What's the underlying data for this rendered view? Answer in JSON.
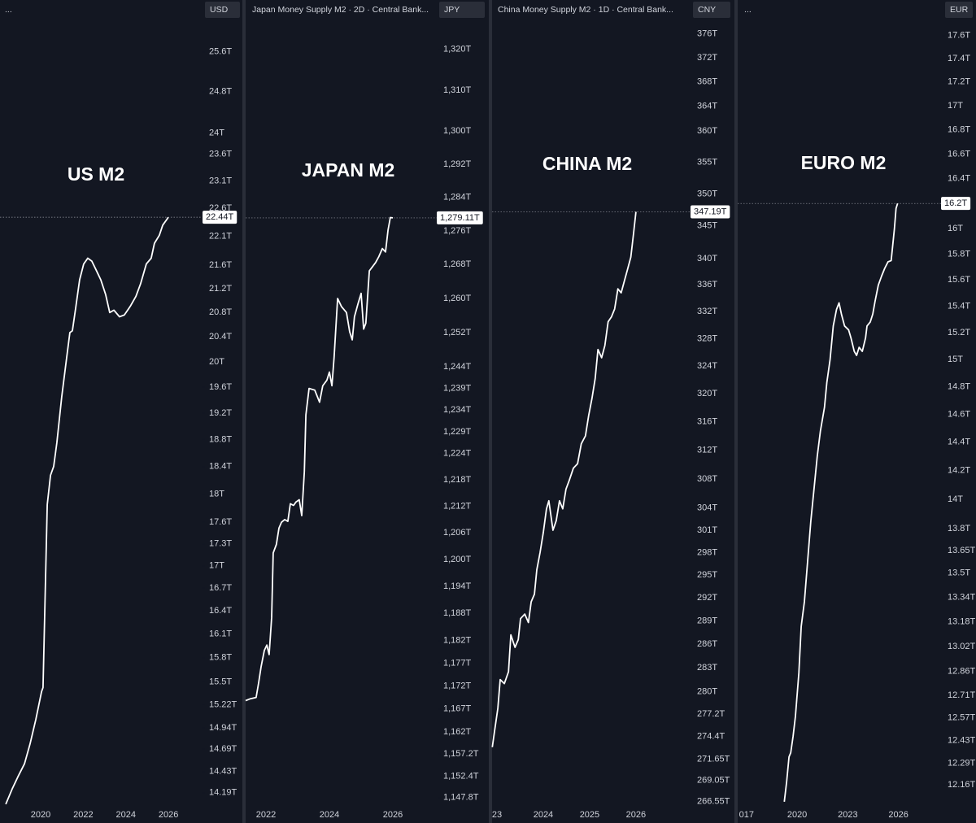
{
  "chart_data": [
    {
      "type": "line",
      "title": "US M2",
      "header": "...",
      "currency": "USD",
      "color": "#ffffff",
      "log_scale": true,
      "xlim": [
        2018.09,
        2027.56
      ],
      "xticks": [
        2020,
        2022,
        2024,
        2026
      ],
      "ylim": [
        14.05,
        26.2
      ],
      "yticks": [
        {
          "value": 14.19,
          "label": "14.19T"
        },
        {
          "value": 14.43,
          "label": "14.43T"
        },
        {
          "value": 14.69,
          "label": "14.69T"
        },
        {
          "value": 14.94,
          "label": "14.94T"
        },
        {
          "value": 15.22,
          "label": "15.22T"
        },
        {
          "value": 15.5,
          "label": "15.5T"
        },
        {
          "value": 15.8,
          "label": "15.8T"
        },
        {
          "value": 16.1,
          "label": "16.1T"
        },
        {
          "value": 16.4,
          "label": "16.4T"
        },
        {
          "value": 16.7,
          "label": "16.7T"
        },
        {
          "value": 17,
          "label": "17T"
        },
        {
          "value": 17.3,
          "label": "17.3T"
        },
        {
          "value": 17.6,
          "label": "17.6T"
        },
        {
          "value": 18,
          "label": "18T"
        },
        {
          "value": 18.4,
          "label": "18.4T"
        },
        {
          "value": 18.8,
          "label": "18.8T"
        },
        {
          "value": 19.2,
          "label": "19.2T"
        },
        {
          "value": 19.6,
          "label": "19.6T"
        },
        {
          "value": 20,
          "label": "20T"
        },
        {
          "value": 20.4,
          "label": "20.4T"
        },
        {
          "value": 20.8,
          "label": "20.8T"
        },
        {
          "value": 21.2,
          "label": "21.2T"
        },
        {
          "value": 21.6,
          "label": "21.6T"
        },
        {
          "value": 22.1,
          "label": "22.1T"
        },
        {
          "value": 22.6,
          "label": "22.6T"
        },
        {
          "value": 23.1,
          "label": "23.1T"
        },
        {
          "value": 23.6,
          "label": "23.6T"
        },
        {
          "value": 24,
          "label": "24T"
        },
        {
          "value": 24.8,
          "label": "24.8T"
        },
        {
          "value": 25.6,
          "label": "25.6T"
        }
      ],
      "last_value": {
        "value": 22.44,
        "label": "22.44T"
      },
      "x": [
        2018.36,
        2018.66,
        2018.93,
        2019.24,
        2019.5,
        2019.77,
        2020.04,
        2020.11,
        2020.31,
        2020.46,
        2020.61,
        2020.76,
        2020.99,
        2021.22,
        2021.37,
        2021.49,
        2021.64,
        2021.83,
        2022.02,
        2022.21,
        2022.4,
        2022.6,
        2022.82,
        2023.05,
        2023.24,
        2023.44,
        2023.7,
        2023.93,
        2024.2,
        2024.47,
        2024.69,
        2024.96,
        2025.19,
        2025.34,
        2025.57,
        2025.73,
        2025.92,
        2025.99
      ],
      "values": [
        14.06,
        14.23,
        14.37,
        14.52,
        14.75,
        15.04,
        15.38,
        15.43,
        17.85,
        18.27,
        18.4,
        18.75,
        19.45,
        20.07,
        20.47,
        20.5,
        20.87,
        21.35,
        21.62,
        21.72,
        21.67,
        21.52,
        21.35,
        21.1,
        20.8,
        20.84,
        20.73,
        20.76,
        20.9,
        21.07,
        21.28,
        21.62,
        21.72,
        21.98,
        22.12,
        22.3,
        22.4,
        22.44
      ]
    },
    {
      "type": "line",
      "title": "JAPAN M2",
      "header": "Japan Money Supply M2 · 2D · Central Bank...",
      "currency": "JPY",
      "color": "#ffffff",
      "log_scale": true,
      "xlim": [
        2021.36,
        2027.41
      ],
      "xticks": [
        2022,
        2024,
        2026
      ],
      "ylim": [
        1146.2,
        1326.6
      ],
      "yticks": [
        {
          "value": 1147.8,
          "label": "1,147.8T"
        },
        {
          "value": 1152.4,
          "label": "1,152.4T"
        },
        {
          "value": 1157.2,
          "label": "1,157.2T"
        },
        {
          "value": 1162,
          "label": "1,162T"
        },
        {
          "value": 1167,
          "label": "1,167T"
        },
        {
          "value": 1172,
          "label": "1,172T"
        },
        {
          "value": 1177,
          "label": "1,177T"
        },
        {
          "value": 1182,
          "label": "1,182T"
        },
        {
          "value": 1188,
          "label": "1,188T"
        },
        {
          "value": 1194,
          "label": "1,194T"
        },
        {
          "value": 1200,
          "label": "1,200T"
        },
        {
          "value": 1206,
          "label": "1,206T"
        },
        {
          "value": 1212,
          "label": "1,212T"
        },
        {
          "value": 1218,
          "label": "1,218T"
        },
        {
          "value": 1224,
          "label": "1,224T"
        },
        {
          "value": 1229,
          "label": "1,229T"
        },
        {
          "value": 1234,
          "label": "1,234T"
        },
        {
          "value": 1239,
          "label": "1,239T"
        },
        {
          "value": 1244,
          "label": "1,244T"
        },
        {
          "value": 1252,
          "label": "1,252T"
        },
        {
          "value": 1260,
          "label": "1,260T"
        },
        {
          "value": 1268,
          "label": "1,268T"
        },
        {
          "value": 1276,
          "label": "1,276T"
        },
        {
          "value": 1284,
          "label": "1,284T"
        },
        {
          "value": 1292,
          "label": "1,292T"
        },
        {
          "value": 1300,
          "label": "1,300T"
        },
        {
          "value": 1310,
          "label": "1,310T"
        },
        {
          "value": 1320,
          "label": "1,320T"
        }
      ],
      "last_value": {
        "value": 1279.11,
        "label": "1,279.11T"
      },
      "x": [
        2021.36,
        2021.51,
        2021.69,
        2021.77,
        2021.85,
        2021.95,
        2022.03,
        2022.1,
        2022.18,
        2022.23,
        2022.33,
        2022.41,
        2022.49,
        2022.59,
        2022.69,
        2022.77,
        2022.87,
        2022.95,
        2023.05,
        2023.13,
        2023.21,
        2023.26,
        2023.36,
        2023.54,
        2023.69,
        2023.79,
        2023.92,
        2024,
        2024.08,
        2024.15,
        2024.26,
        2024.38,
        2024.54,
        2024.64,
        2024.72,
        2024.79,
        2024.9,
        2025,
        2025.08,
        2025.15,
        2025.26,
        2025.36,
        2025.46,
        2025.56,
        2025.67,
        2025.77,
        2025.85,
        2025.92,
        2026
      ],
      "values": [
        1168.8,
        1169.2,
        1169.5,
        1172.7,
        1176.3,
        1179.8,
        1181,
        1178.9,
        1187.1,
        1201.5,
        1203.4,
        1207.1,
        1208.4,
        1209,
        1208.6,
        1212.6,
        1212.2,
        1213,
        1213.5,
        1209.9,
        1219.9,
        1232.9,
        1239,
        1238.6,
        1235.8,
        1239.6,
        1240.9,
        1242.8,
        1239.6,
        1246.3,
        1260,
        1258.1,
        1256.7,
        1252.2,
        1250.3,
        1255.7,
        1258.7,
        1261.2,
        1252.8,
        1254.2,
        1266.5,
        1267.5,
        1268.5,
        1269.9,
        1271.8,
        1271,
        1276.2,
        1279.2,
        1279.11
      ]
    },
    {
      "type": "line",
      "title": "CHINA M2",
      "header": "China Money Supply M2 · 1D · Central Bank...",
      "currency": "CNY",
      "color": "#ffffff",
      "log_scale": true,
      "xlim": [
        2022.895,
        2027.16
      ],
      "xticks": [
        {
          "value": 2023,
          "label": "23"
        },
        2024,
        2025,
        2026
      ],
      "ylim": [
        266.1,
        377.9
      ],
      "yticks": [
        {
          "value": 266.55,
          "label": "266.55T"
        },
        {
          "value": 269.05,
          "label": "269.05T"
        },
        {
          "value": 271.65,
          "label": "271.65T"
        },
        {
          "value": 274.4,
          "label": "274.4T"
        },
        {
          "value": 277.2,
          "label": "277.2T"
        },
        {
          "value": 280,
          "label": "280T"
        },
        {
          "value": 283,
          "label": "283T"
        },
        {
          "value": 286,
          "label": "286T"
        },
        {
          "value": 289,
          "label": "289T"
        },
        {
          "value": 292,
          "label": "292T"
        },
        {
          "value": 295,
          "label": "295T"
        },
        {
          "value": 298,
          "label": "298T"
        },
        {
          "value": 301,
          "label": "301T"
        },
        {
          "value": 304,
          "label": "304T"
        },
        {
          "value": 308,
          "label": "308T"
        },
        {
          "value": 312,
          "label": "312T"
        },
        {
          "value": 316,
          "label": "316T"
        },
        {
          "value": 320,
          "label": "320T"
        },
        {
          "value": 324,
          "label": "324T"
        },
        {
          "value": 328,
          "label": "328T"
        },
        {
          "value": 332,
          "label": "332T"
        },
        {
          "value": 336,
          "label": "336T"
        },
        {
          "value": 340,
          "label": "340T"
        },
        {
          "value": 345,
          "label": "345T"
        },
        {
          "value": 350,
          "label": "350T"
        },
        {
          "value": 355,
          "label": "355T"
        },
        {
          "value": 360,
          "label": "360T"
        },
        {
          "value": 364,
          "label": "364T"
        },
        {
          "value": 368,
          "label": "368T"
        },
        {
          "value": 372,
          "label": "372T"
        },
        {
          "value": 376,
          "label": "376T"
        }
      ],
      "last_value": {
        "value": 347.19,
        "label": "347.19T"
      },
      "x": [
        2022.9,
        2022.95,
        2023.02,
        2023.07,
        2023.16,
        2023.25,
        2023.3,
        2023.39,
        2023.46,
        2023.51,
        2023.6,
        2023.68,
        2023.74,
        2023.81,
        2023.86,
        2023.93,
        2024,
        2024.07,
        2024.12,
        2024.21,
        2024.28,
        2024.35,
        2024.42,
        2024.49,
        2024.56,
        2024.65,
        2024.74,
        2024.82,
        2024.91,
        2024.98,
        2025.05,
        2025.12,
        2025.18,
        2025.26,
        2025.33,
        2025.4,
        2025.47,
        2025.54,
        2025.61,
        2025.68,
        2025.75,
        2025.82,
        2025.89,
        2025.95,
        2026
      ],
      "values": [
        273.1,
        275.1,
        277.9,
        281.5,
        281,
        282.5,
        287.2,
        285.6,
        286.6,
        289.3,
        289.9,
        288.8,
        291.5,
        292.5,
        295.7,
        298,
        300.7,
        303.9,
        305,
        301,
        302.3,
        305,
        303.9,
        306.6,
        307.8,
        309.5,
        310.1,
        312.9,
        314,
        316.9,
        319.3,
        322.2,
        326.4,
        325.2,
        327,
        330.5,
        331.2,
        332.4,
        335.4,
        334.8,
        336.6,
        338.4,
        340.2,
        344,
        347.19
      ]
    },
    {
      "type": "line",
      "title": "EURO M2",
      "header": "...",
      "currency": "EUR",
      "color": "#ffffff",
      "log_scale": true,
      "xlim": [
        2016.48,
        2028.57
      ],
      "xticks": [
        {
          "value": 2017,
          "label": "017"
        },
        2020,
        2023,
        2026
      ],
      "ylim": [
        12.04,
        17.71
      ],
      "yticks": [
        {
          "value": 12.16,
          "label": "12.16T"
        },
        {
          "value": 12.29,
          "label": "12.29T"
        },
        {
          "value": 12.43,
          "label": "12.43T"
        },
        {
          "value": 12.57,
          "label": "12.57T"
        },
        {
          "value": 12.71,
          "label": "12.71T"
        },
        {
          "value": 12.86,
          "label": "12.86T"
        },
        {
          "value": 13.02,
          "label": "13.02T"
        },
        {
          "value": 13.18,
          "label": "13.18T"
        },
        {
          "value": 13.34,
          "label": "13.34T"
        },
        {
          "value": 13.5,
          "label": "13.5T"
        },
        {
          "value": 13.65,
          "label": "13.65T"
        },
        {
          "value": 13.8,
          "label": "13.8T"
        },
        {
          "value": 14,
          "label": "14T"
        },
        {
          "value": 14.2,
          "label": "14.2T"
        },
        {
          "value": 14.4,
          "label": "14.4T"
        },
        {
          "value": 14.6,
          "label": "14.6T"
        },
        {
          "value": 14.8,
          "label": "14.8T"
        },
        {
          "value": 15,
          "label": "15T"
        },
        {
          "value": 15.2,
          "label": "15.2T"
        },
        {
          "value": 15.4,
          "label": "15.4T"
        },
        {
          "value": 15.6,
          "label": "15.6T"
        },
        {
          "value": 15.8,
          "label": "15.8T"
        },
        {
          "value": 16,
          "label": "16T"
        },
        {
          "value": 16.2,
          "label": "16.2T"
        },
        {
          "value": 16.4,
          "label": "16.4T"
        },
        {
          "value": 16.6,
          "label": "16.6T"
        },
        {
          "value": 16.8,
          "label": "16.8T"
        },
        {
          "value": 17,
          "label": "17T"
        },
        {
          "value": 17.2,
          "label": "17.2T"
        },
        {
          "value": 17.4,
          "label": "17.4T"
        },
        {
          "value": 17.6,
          "label": "17.6T"
        }
      ],
      "last_value": {
        "value": 16.2,
        "label": "16.2T"
      },
      "x": [
        2019.24,
        2019.38,
        2019.52,
        2019.62,
        2019.76,
        2019.9,
        2020.1,
        2020.24,
        2020.43,
        2020.62,
        2020.81,
        2021,
        2021.19,
        2021.38,
        2021.62,
        2021.76,
        2021.95,
        2022.14,
        2022.33,
        2022.48,
        2022.62,
        2022.81,
        2023.05,
        2023.19,
        2023.38,
        2023.52,
        2023.67,
        2023.86,
        2024.05,
        2024.14,
        2024.33,
        2024.48,
        2024.62,
        2024.81,
        2025,
        2025.19,
        2025.38,
        2025.57,
        2025.67,
        2025.76,
        2025.86,
        2025.95
      ],
      "values": [
        12.06,
        12.18,
        12.33,
        12.355,
        12.455,
        12.58,
        12.85,
        13.15,
        13.31,
        13.58,
        13.85,
        14.07,
        14.3,
        14.48,
        14.65,
        14.83,
        15,
        15.25,
        15.375,
        15.425,
        15.34,
        15.25,
        15.22,
        15.16,
        15.06,
        15.03,
        15.09,
        15.06,
        15.16,
        15.25,
        15.28,
        15.34,
        15.44,
        15.56,
        15.63,
        15.69,
        15.74,
        15.75,
        15.88,
        16,
        16.16,
        16.2
      ]
    }
  ]
}
